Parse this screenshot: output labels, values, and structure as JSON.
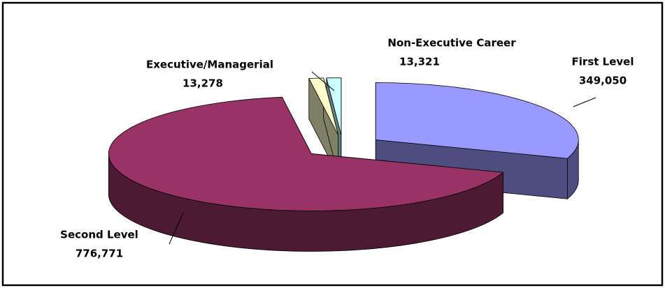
{
  "chart_data": {
    "type": "pie",
    "categories": [
      "First Level",
      "Second Level",
      "Executive/Managerial",
      "Non-Executive Career"
    ],
    "values": [
      349050,
      776771,
      13278,
      13321
    ],
    "value_labels": [
      "349,050",
      "776,771",
      "13,278",
      "13,321"
    ],
    "colors": [
      "#9999ff",
      "#993366",
      "#ffffcc",
      "#ccffff"
    ],
    "exploded": true,
    "three_d": true
  }
}
